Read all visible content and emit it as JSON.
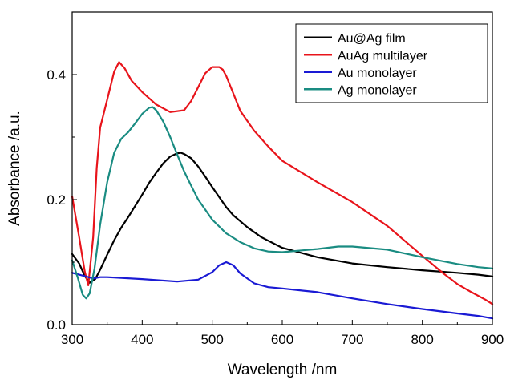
{
  "chart_data": {
    "type": "line",
    "title": "",
    "xlabel": "Wavelength /nm",
    "ylabel": "Absorbance /a.u.",
    "xlim": [
      300,
      900
    ],
    "ylim": [
      0.0,
      0.5
    ],
    "x_ticks": [
      300,
      400,
      500,
      600,
      700,
      800,
      900
    ],
    "y_ticks": [
      0.0,
      0.2,
      0.4
    ],
    "x_tick_labels": [
      "300",
      "400",
      "500",
      "600",
      "700",
      "800",
      "900"
    ],
    "y_tick_labels": [
      "0.0",
      "0.2",
      "0.4"
    ],
    "grid": false,
    "legend_position": "top-right",
    "series": [
      {
        "name": "Au@Ag film",
        "color": "#000000",
        "x": [
          300,
          310,
          318,
          325,
          333,
          340,
          350,
          360,
          370,
          380,
          390,
          400,
          410,
          420,
          430,
          440,
          450,
          455,
          460,
          470,
          480,
          490,
          500,
          510,
          520,
          530,
          550,
          570,
          600,
          650,
          700,
          750,
          800,
          850,
          880,
          900
        ],
        "y": [
          0.113,
          0.098,
          0.078,
          0.067,
          0.073,
          0.088,
          0.112,
          0.135,
          0.155,
          0.172,
          0.19,
          0.208,
          0.227,
          0.243,
          0.258,
          0.269,
          0.274,
          0.275,
          0.273,
          0.266,
          0.253,
          0.237,
          0.22,
          0.204,
          0.188,
          0.175,
          0.156,
          0.14,
          0.123,
          0.108,
          0.098,
          0.092,
          0.087,
          0.083,
          0.08,
          0.077
        ]
      },
      {
        "name": "AuAg multilayer",
        "color": "#e8141b",
        "x": [
          300,
          310,
          318,
          323,
          330,
          335,
          340,
          350,
          360,
          367,
          375,
          385,
          400,
          420,
          440,
          460,
          470,
          480,
          490,
          500,
          510,
          515,
          520,
          530,
          540,
          560,
          580,
          600,
          650,
          700,
          750,
          800,
          830,
          850,
          870,
          890,
          900
        ],
        "y": [
          0.205,
          0.14,
          0.085,
          0.063,
          0.14,
          0.25,
          0.315,
          0.36,
          0.405,
          0.42,
          0.41,
          0.39,
          0.372,
          0.352,
          0.34,
          0.343,
          0.358,
          0.38,
          0.402,
          0.412,
          0.412,
          0.408,
          0.398,
          0.37,
          0.342,
          0.31,
          0.285,
          0.262,
          0.228,
          0.196,
          0.158,
          0.11,
          0.082,
          0.065,
          0.052,
          0.04,
          0.033
        ]
      },
      {
        "name": "Au monolayer",
        "color": "#1a1ad4",
        "x": [
          300,
          310,
          320,
          330,
          340,
          350,
          400,
          450,
          480,
          500,
          510,
          520,
          530,
          540,
          560,
          580,
          600,
          650,
          700,
          750,
          800,
          850,
          880,
          900
        ],
        "y": [
          0.083,
          0.08,
          0.077,
          0.074,
          0.076,
          0.076,
          0.073,
          0.069,
          0.072,
          0.084,
          0.095,
          0.1,
          0.095,
          0.082,
          0.066,
          0.06,
          0.058,
          0.052,
          0.042,
          0.033,
          0.025,
          0.018,
          0.014,
          0.01
        ]
      },
      {
        "name": "Ag monolayer",
        "color": "#1a8c82",
        "x": [
          300,
          308,
          315,
          320,
          325,
          332,
          340,
          350,
          360,
          370,
          380,
          390,
          400,
          410,
          415,
          420,
          430,
          440,
          450,
          460,
          470,
          480,
          500,
          520,
          540,
          560,
          580,
          600,
          650,
          680,
          700,
          750,
          800,
          850,
          880,
          900
        ],
        "y": [
          0.103,
          0.075,
          0.048,
          0.042,
          0.05,
          0.09,
          0.16,
          0.228,
          0.275,
          0.297,
          0.308,
          0.322,
          0.337,
          0.347,
          0.348,
          0.343,
          0.325,
          0.3,
          0.272,
          0.245,
          0.222,
          0.2,
          0.168,
          0.146,
          0.132,
          0.122,
          0.117,
          0.116,
          0.121,
          0.125,
          0.125,
          0.12,
          0.108,
          0.097,
          0.092,
          0.09
        ]
      }
    ]
  }
}
